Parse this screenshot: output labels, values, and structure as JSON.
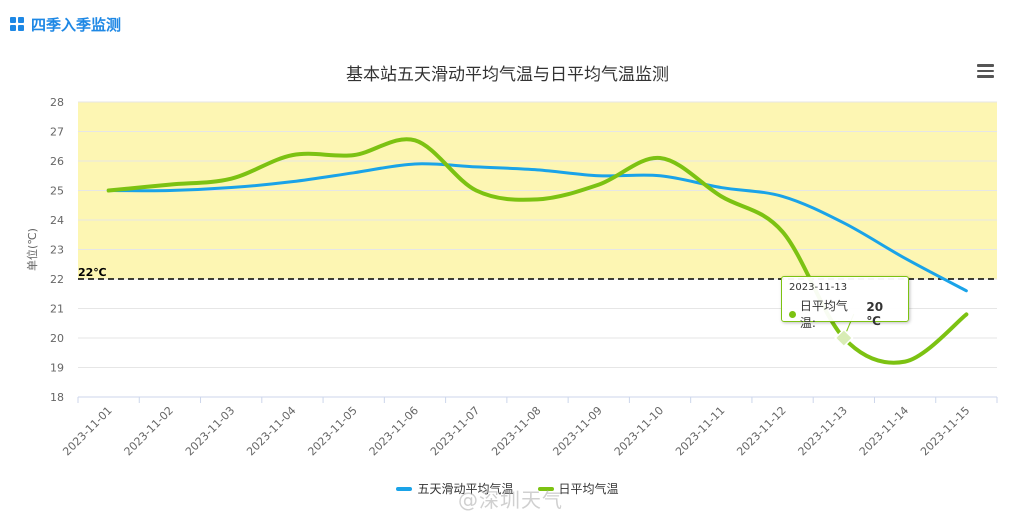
{
  "header": {
    "title": "四季入季监测",
    "icon": "grid-icon"
  },
  "watermark": "@深圳天气",
  "tooltip": {
    "date": "2023-11-13",
    "series_label": "日平均气温: ",
    "value_text": "20 ℃"
  },
  "colors": {
    "five_day": "#1aa3e8",
    "daily": "#7cc212",
    "band": "#fdf6b3",
    "threshold": "#000000"
  },
  "chart_data": {
    "type": "line",
    "title": "基本站五天滑动平均气温与日平均气温监测",
    "ylabel": "单位(℃)",
    "xlabel": "",
    "ylim": [
      18,
      28
    ],
    "yticks": [
      18,
      19,
      20,
      21,
      22,
      23,
      24,
      25,
      26,
      27,
      28
    ],
    "categories": [
      "2023-11-01",
      "2023-11-02",
      "2023-11-03",
      "2023-11-04",
      "2023-11-05",
      "2023-11-06",
      "2023-11-07",
      "2023-11-08",
      "2023-11-09",
      "2023-11-10",
      "2023-11-11",
      "2023-11-12",
      "2023-11-13",
      "2023-11-14",
      "2023-11-15"
    ],
    "grid": true,
    "band": {
      "from": 22,
      "to": 28
    },
    "threshold": {
      "value": 22,
      "label": "22℃"
    },
    "legend_position": "bottom-center",
    "series": [
      {
        "name": "五天滑动平均气温",
        "values": [
          25.0,
          25.0,
          25.1,
          25.3,
          25.6,
          25.9,
          25.8,
          25.7,
          25.5,
          25.5,
          25.1,
          24.8,
          23.9,
          22.7,
          21.6
        ]
      },
      {
        "name": "日平均气温",
        "values": [
          25.0,
          25.2,
          25.4,
          26.2,
          26.2,
          26.7,
          25.0,
          24.7,
          25.2,
          26.1,
          24.8,
          23.6,
          20.0,
          19.2,
          20.8
        ]
      }
    ]
  }
}
